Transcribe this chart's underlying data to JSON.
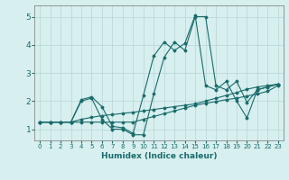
{
  "title": "",
  "xlabel": "Humidex (Indice chaleur)",
  "ylabel": "",
  "bg_color": "#d7efef",
  "grid_color": "#b8d4d4",
  "line_color": "#1a6b6b",
  "xlim": [
    -0.5,
    23.5
  ],
  "ylim": [
    0.6,
    5.4
  ],
  "xticks": [
    0,
    1,
    2,
    3,
    4,
    5,
    6,
    7,
    8,
    9,
    10,
    11,
    12,
    13,
    14,
    15,
    16,
    17,
    18,
    19,
    20,
    21,
    22,
    23
  ],
  "yticks": [
    1,
    2,
    3,
    4,
    5
  ],
  "series": [
    {
      "x": [
        0,
        1,
        2,
        3,
        4,
        5,
        6,
        7,
        8,
        9,
        10,
        11,
        12,
        13,
        14,
        15,
        16,
        17,
        18,
        19,
        20,
        21,
        22,
        23
      ],
      "y": [
        1.25,
        1.25,
        1.25,
        1.25,
        1.25,
        1.25,
        1.25,
        1.25,
        1.25,
        1.25,
        1.35,
        1.45,
        1.55,
        1.65,
        1.75,
        1.85,
        1.92,
        1.98,
        2.05,
        2.1,
        2.18,
        2.25,
        2.35,
        2.55
      ]
    },
    {
      "x": [
        0,
        1,
        2,
        3,
        4,
        5,
        6,
        7,
        8,
        9,
        10,
        11,
        12,
        13,
        14,
        15,
        16,
        17,
        18,
        19,
        20,
        21,
        22,
        23
      ],
      "y": [
        1.25,
        1.25,
        1.25,
        1.25,
        2.0,
        2.1,
        1.35,
        1.0,
        1.0,
        0.8,
        0.8,
        2.25,
        3.55,
        4.1,
        3.8,
        5.0,
        5.0,
        2.55,
        2.4,
        2.7,
        1.95,
        2.4,
        2.5,
        2.6
      ]
    },
    {
      "x": [
        0,
        1,
        2,
        3,
        4,
        5,
        6,
        7,
        8,
        9,
        10,
        11,
        12,
        13,
        14,
        15,
        16,
        17,
        18,
        19,
        20,
        21,
        22,
        23
      ],
      "y": [
        1.25,
        1.25,
        1.25,
        1.25,
        2.05,
        2.15,
        1.8,
        1.1,
        1.05,
        0.85,
        2.2,
        3.6,
        4.1,
        3.8,
        4.05,
        5.05,
        2.55,
        2.4,
        2.7,
        2.0,
        1.4,
        2.4,
        2.5,
        2.6
      ]
    },
    {
      "x": [
        0,
        1,
        2,
        3,
        4,
        5,
        6,
        7,
        8,
        9,
        10,
        11,
        12,
        13,
        14,
        15,
        16,
        17,
        18,
        19,
        20,
        21,
        22,
        23
      ],
      "y": [
        1.25,
        1.25,
        1.25,
        1.25,
        1.35,
        1.42,
        1.48,
        1.52,
        1.56,
        1.6,
        1.65,
        1.7,
        1.75,
        1.8,
        1.85,
        1.9,
        2.0,
        2.1,
        2.2,
        2.3,
        2.42,
        2.5,
        2.55,
        2.6
      ]
    }
  ]
}
